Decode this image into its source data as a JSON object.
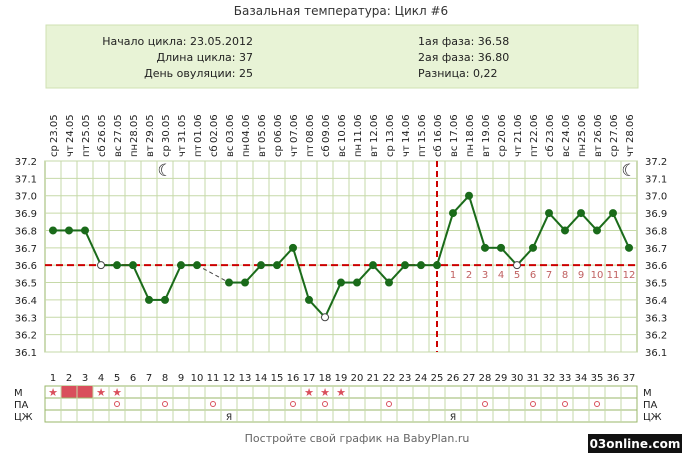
{
  "header": {
    "title": "Базальная температура: Цикл #6",
    "info_left": [
      "Начало цикла: 23.05.2012",
      "Длина цикла: 37",
      "День овуляции: 25"
    ],
    "info_right": [
      "1ая фаза: 36.58",
      "2ая фаза: 36.80",
      "Разница: 0,22"
    ]
  },
  "chart_data": {
    "type": "line",
    "dates": [
      "23.05",
      "24.05",
      "25.05",
      "26.05",
      "27.05",
      "28.05",
      "29.05",
      "30.05",
      "31.05",
      "01.06",
      "02.06",
      "03.06",
      "04.06",
      "05.06",
      "06.06",
      "07.06",
      "08.06",
      "09.06",
      "10.06",
      "11.06",
      "12.06",
      "13.06",
      "14.06",
      "15.06",
      "16.06",
      "17.06",
      "18.06",
      "19.06",
      "20.06",
      "21.06",
      "22.06",
      "23.06",
      "24.06",
      "25.06",
      "26.06",
      "27.06",
      "28.06"
    ],
    "weekdays": [
      "ср",
      "чт",
      "пт",
      "сб",
      "вс",
      "пн",
      "вт",
      "ср",
      "чт",
      "пт",
      "сб",
      "вс",
      "пн",
      "вт",
      "ср",
      "чт",
      "пт",
      "сб",
      "вс",
      "пн",
      "вт",
      "ср",
      "чт",
      "пт",
      "сб",
      "вс",
      "пн",
      "вт",
      "ср",
      "чт",
      "пт",
      "сб",
      "вс",
      "пн",
      "вт",
      "ср",
      "чт"
    ],
    "days": [
      1,
      2,
      3,
      4,
      5,
      6,
      7,
      8,
      9,
      10,
      11,
      12,
      13,
      14,
      15,
      16,
      17,
      18,
      19,
      20,
      21,
      22,
      23,
      24,
      25,
      26,
      27,
      28,
      29,
      30,
      31,
      32,
      33,
      34,
      35,
      36,
      37
    ],
    "values": [
      36.8,
      36.8,
      36.8,
      36.6,
      36.6,
      36.6,
      36.4,
      36.4,
      36.6,
      36.6,
      null,
      36.5,
      36.5,
      36.6,
      36.6,
      36.7,
      36.4,
      36.3,
      36.5,
      36.5,
      36.6,
      36.5,
      36.6,
      36.6,
      36.6,
      36.9,
      37.0,
      36.7,
      36.7,
      36.6,
      36.7,
      36.9,
      36.8,
      36.9,
      36.8,
      36.9,
      36.7
    ],
    "excluded_days": [
      4,
      18,
      30
    ],
    "dashed_gap": [
      10,
      12
    ],
    "ylim": [
      36.1,
      37.2
    ],
    "yticks": [
      "37.2",
      "37.1",
      "37.0",
      "36.9",
      "36.8",
      "36.7",
      "36.6",
      "36.5",
      "36.4",
      "36.3",
      "36.2",
      "36.1"
    ],
    "cover_line": 36.6,
    "ovulation_day": 25,
    "luteal_numbers": [
      "1",
      "2",
      "3",
      "4",
      "5",
      "6",
      "7",
      "8",
      "9",
      "10",
      "11",
      "12"
    ],
    "moon_days": [
      8,
      37
    ],
    "colors": {
      "line": "#1a6b1a",
      "cover": "#cc0000",
      "grid": "#c6d9a8",
      "header_bg": "#e8f3d6"
    }
  },
  "bottom_table": {
    "row_labels": [
      "М",
      "ПА",
      "ЦЖ"
    ],
    "menstruation_bars": [
      2,
      3
    ],
    "menstruation_stars": [
      1,
      4,
      5,
      17,
      18,
      19
    ],
    "intercourse_days": [
      5,
      8,
      11,
      16,
      18,
      22,
      28,
      31,
      33,
      35
    ],
    "cm_days": [
      12,
      26
    ],
    "cm_mark": "Я"
  },
  "footer": {
    "text": "Постройте свой график на BabyPlan.ru",
    "watermark": "03online.com"
  }
}
